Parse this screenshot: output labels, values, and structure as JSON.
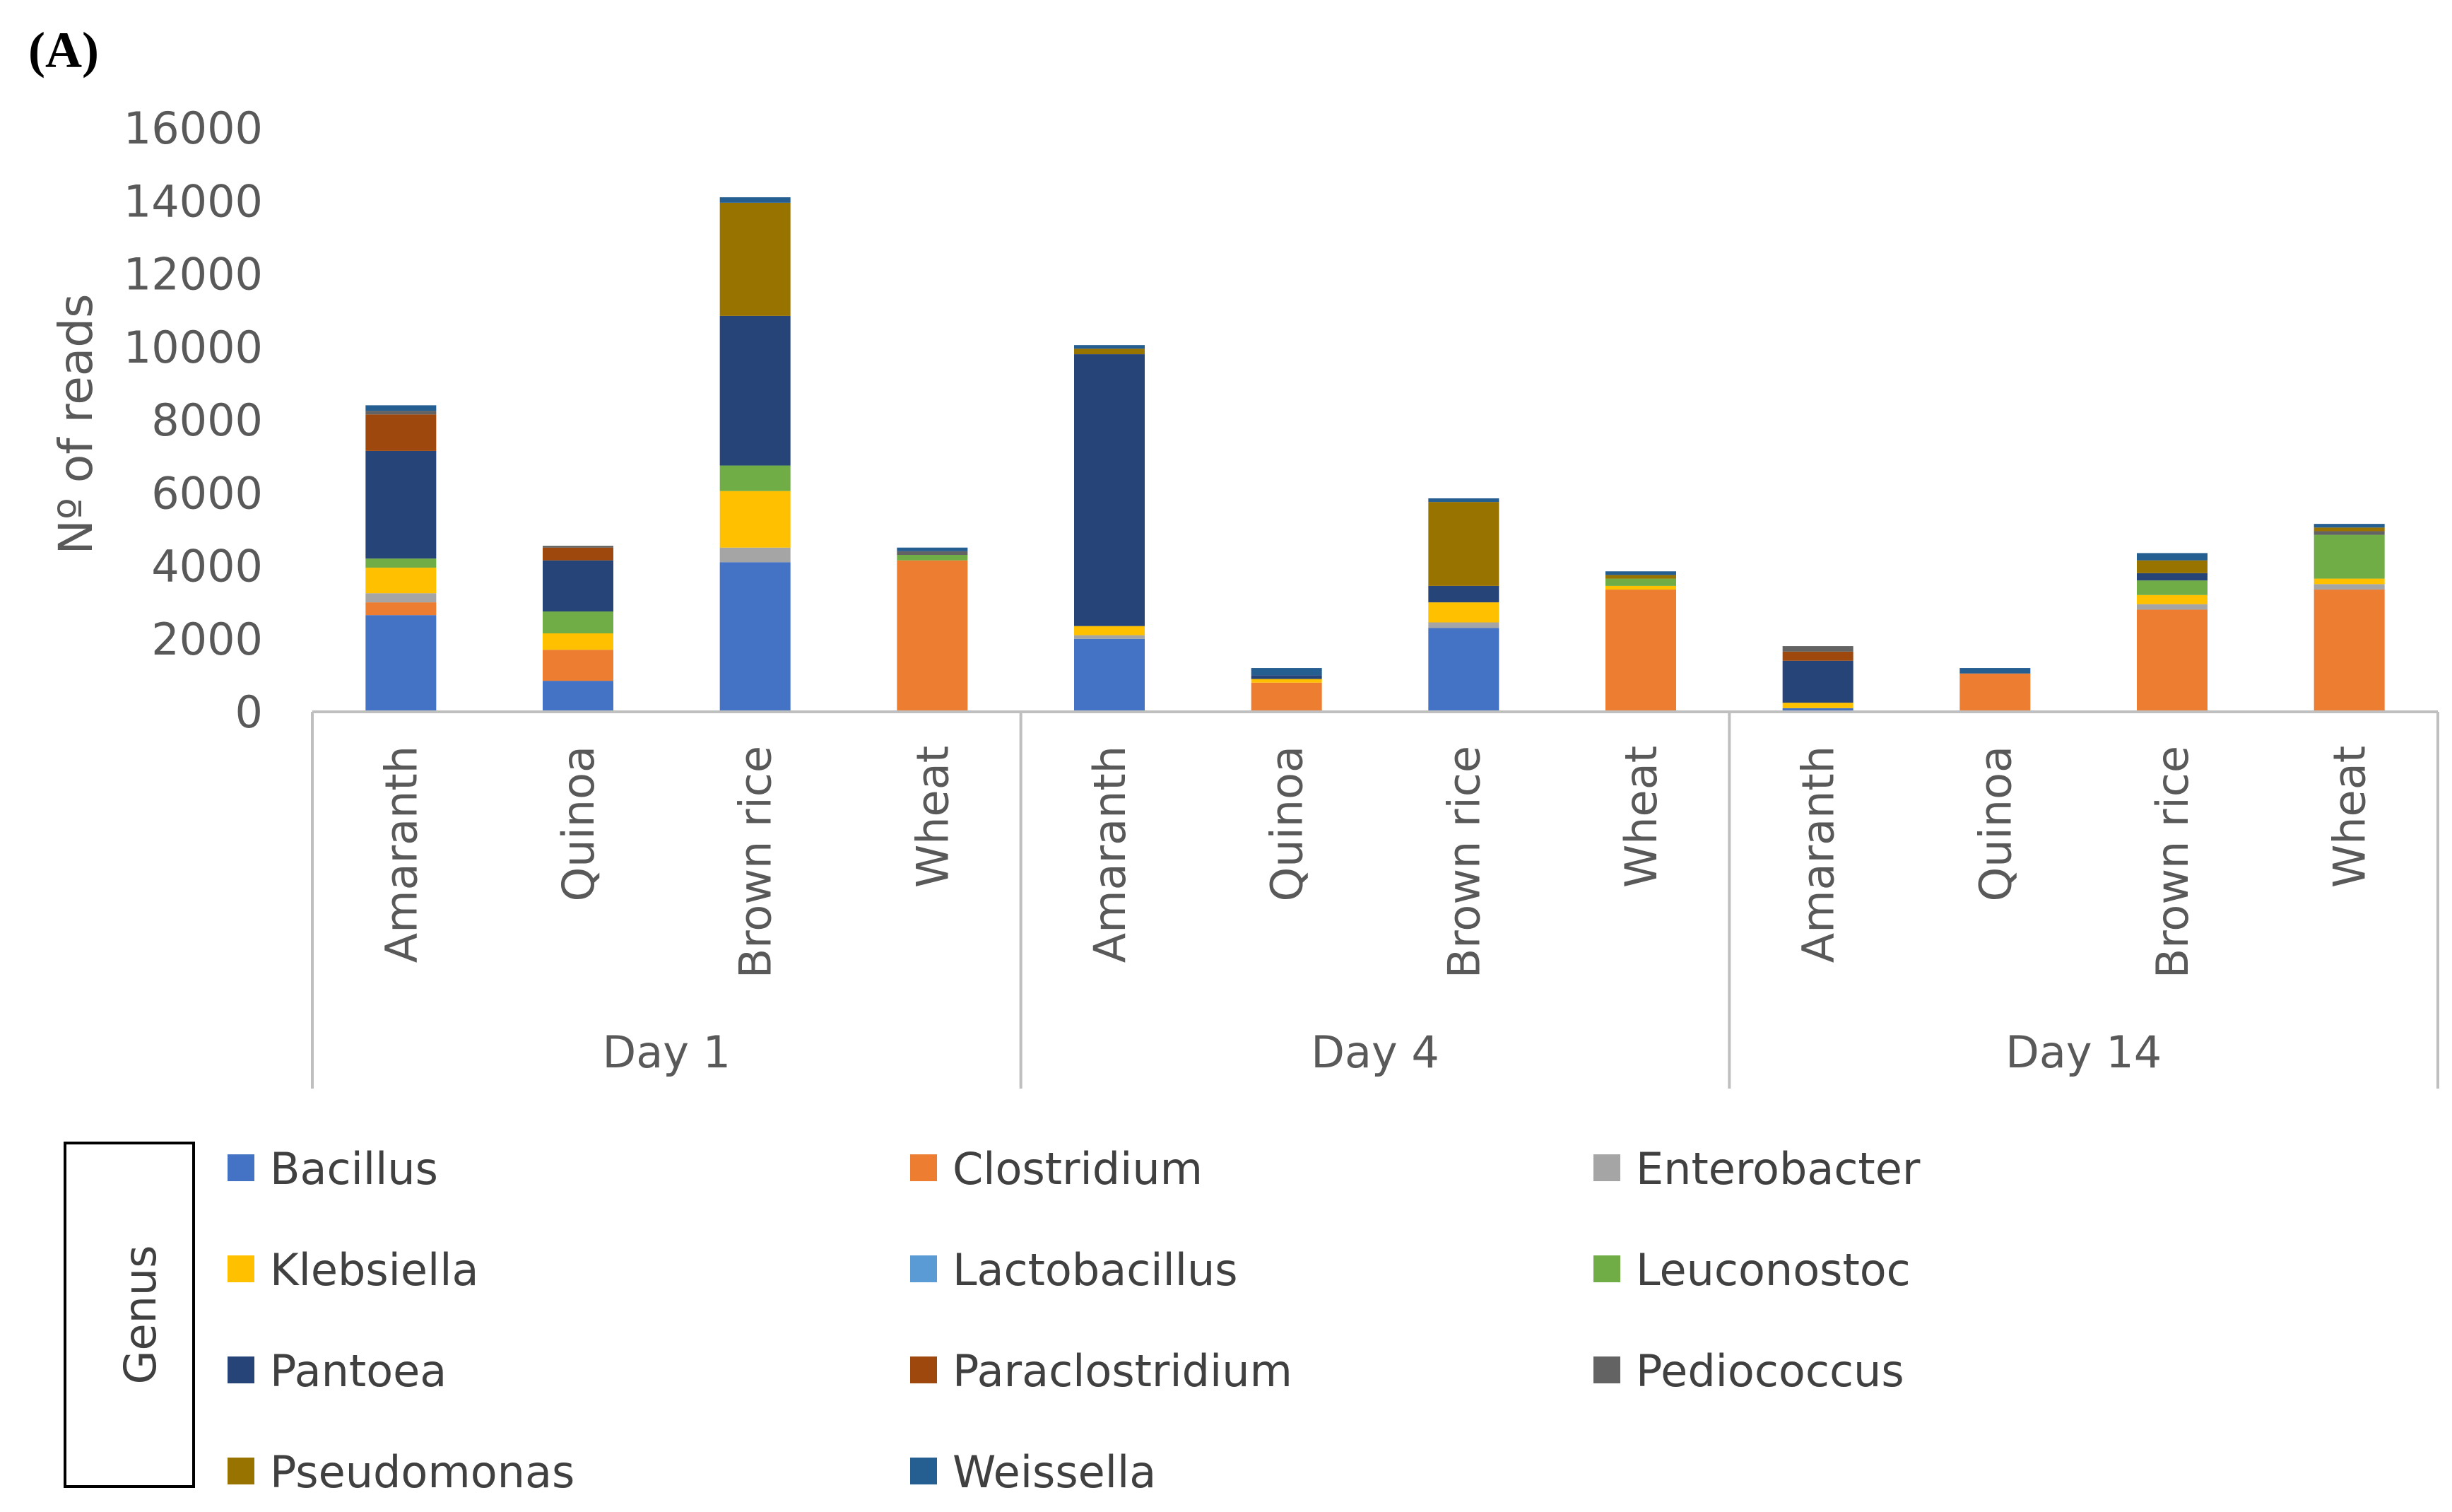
{
  "panel_label": "(A)",
  "chart_data": {
    "type": "bar",
    "stacked": true,
    "title": "",
    "ylabel": "Nº  of reads",
    "ylim": [
      0,
      16000
    ],
    "yticks": [
      0,
      2000,
      4000,
      6000,
      8000,
      10000,
      12000,
      14000,
      16000
    ],
    "groups": [
      {
        "label": "Day 1",
        "categories": [
          "Amaranth",
          "Quinoa",
          "Brown rice",
          "Wheat"
        ]
      },
      {
        "label": "Day 4",
        "categories": [
          "Amaranth",
          "Quinoa",
          "Brown rice",
          "Wheat"
        ]
      },
      {
        "label": "Day 14",
        "categories": [
          "Amaranth",
          "Quinoa",
          "Brown rice",
          "Wheat"
        ]
      }
    ],
    "legend_title": "Genus",
    "series": [
      {
        "name": "Bacillus",
        "color": "#4472c4",
        "values": [
          2650,
          850,
          4100,
          0,
          2000,
          0,
          2300,
          0,
          100,
          0,
          0,
          0
        ]
      },
      {
        "name": "Clostridium",
        "color": "#ed7d31",
        "values": [
          350,
          850,
          0,
          4150,
          0,
          800,
          0,
          3350,
          0,
          1050,
          2800,
          3350
        ]
      },
      {
        "name": "Enterobacter",
        "color": "#a5a5a5",
        "values": [
          250,
          0,
          400,
          0,
          100,
          0,
          150,
          0,
          0,
          0,
          150,
          150
        ]
      },
      {
        "name": "Klebsiella",
        "color": "#ffc000",
        "values": [
          700,
          450,
          1550,
          0,
          250,
          100,
          550,
          100,
          150,
          0,
          250,
          150
        ]
      },
      {
        "name": "Lactobacillus",
        "color": "#5b9bd5",
        "values": [
          0,
          0,
          0,
          0,
          0,
          0,
          0,
          0,
          0,
          0,
          0,
          0
        ]
      },
      {
        "name": "Leuconostoc",
        "color": "#70ad47",
        "values": [
          250,
          600,
          700,
          150,
          0,
          0,
          0,
          200,
          0,
          0,
          400,
          1200
        ]
      },
      {
        "name": "Pantoea",
        "color": "#264478",
        "values": [
          2950,
          1400,
          4100,
          0,
          7450,
          100,
          450,
          0,
          1150,
          0,
          200,
          0
        ]
      },
      {
        "name": "Paraclostridium",
        "color": "#9e480e",
        "values": [
          1000,
          350,
          0,
          0,
          0,
          0,
          0,
          0,
          250,
          0,
          0,
          0
        ]
      },
      {
        "name": "Pediococcus",
        "color": "#636363",
        "values": [
          100,
          50,
          0,
          100,
          0,
          0,
          0,
          0,
          150,
          0,
          0,
          100
        ]
      },
      {
        "name": "Pseudomonas",
        "color": "#997300",
        "values": [
          0,
          0,
          3100,
          0,
          150,
          0,
          2300,
          100,
          0,
          0,
          350,
          100
        ]
      },
      {
        "name": "Weissella",
        "color": "#255e91",
        "values": [
          150,
          0,
          150,
          100,
          100,
          200,
          100,
          100,
          0,
          150,
          200,
          100
        ]
      }
    ]
  }
}
